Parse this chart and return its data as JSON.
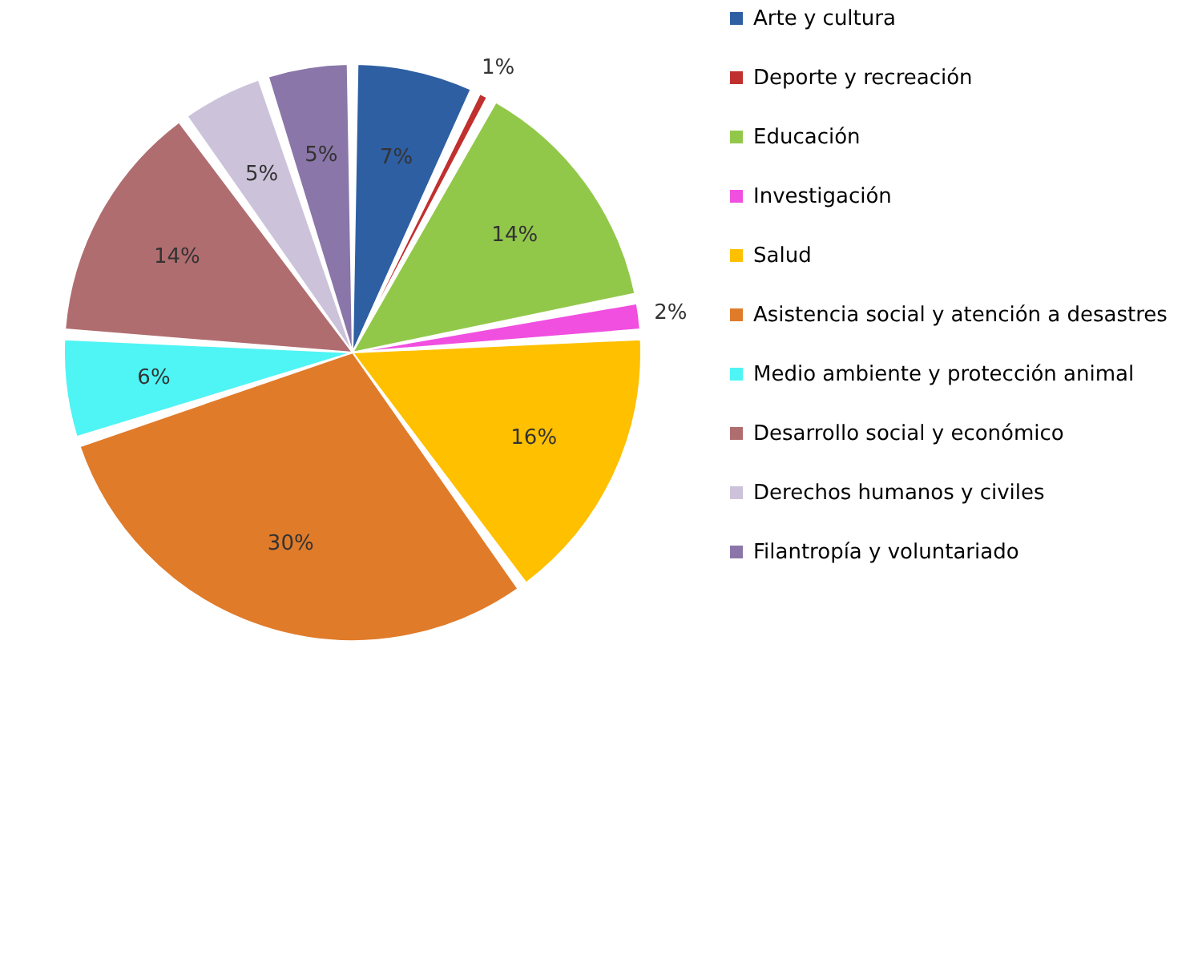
{
  "chart_data": {
    "type": "pie",
    "categories": [
      "Arte y cultura",
      "Deporte y recreación",
      "Educación",
      "Investigación",
      "Salud",
      "Asistencia social y atención a desastres",
      "Medio ambiente y protección animal",
      "Desarrollo social y económico",
      "Derechos humanos y civiles",
      "Filantropía y voluntariado"
    ],
    "values": [
      7,
      1,
      14,
      2,
      16,
      30,
      6,
      14,
      5,
      5
    ],
    "value_labels": [
      "7%",
      "1%",
      "14%",
      "2%",
      "16%",
      "30%",
      "6%",
      "14%",
      "5%",
      "5%"
    ],
    "colors": [
      "#2e5fa3",
      "#c0302e",
      "#92c84a",
      "#f04fe0",
      "#ffc000",
      "#e07b2a",
      "#4ff4f4",
      "#b06d70",
      "#ccc3db",
      "#8a76a8"
    ],
    "legend": "right"
  }
}
